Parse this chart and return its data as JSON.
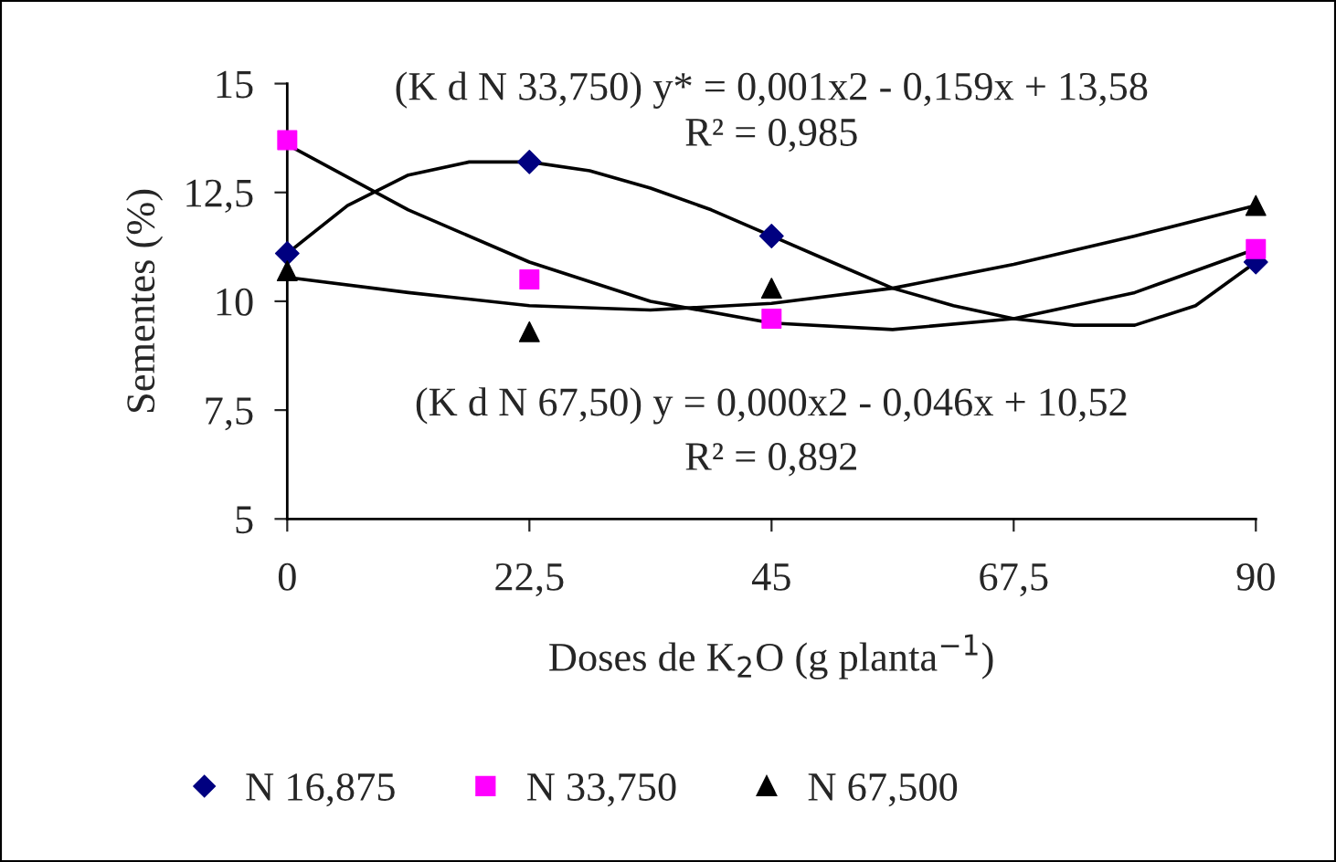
{
  "chart_data": {
    "type": "scatter",
    "xlabel": "Doses de K$_{2}$O (g planta$^{−1}$)",
    "ylabel": "Sementes (%)",
    "xlim": [
      0,
      90
    ],
    "ylim": [
      5,
      15
    ],
    "xticks": [
      0,
      {
        "value": 22.5,
        "label": "22,5"
      },
      45,
      {
        "value": 67.5,
        "label": "67,5"
      },
      90
    ],
    "yticks": [
      5,
      {
        "value": 7.5,
        "label": "7,5"
      },
      10,
      {
        "value": 12.5,
        "label": "12,5"
      },
      15
    ],
    "grid": false,
    "legend": "bottom",
    "series": [
      {
        "name": "N 16,875",
        "marker": "diamond",
        "color": "#000080",
        "x": [
          0,
          22.5,
          45,
          90
        ],
        "values": [
          11.1,
          13.2,
          11.5,
          10.9
        ]
      },
      {
        "name": "N 33,750",
        "marker": "square",
        "color": "#ff00ff",
        "x": [
          0,
          22.5,
          45,
          90
        ],
        "values": [
          13.7,
          10.5,
          9.6,
          11.2
        ]
      },
      {
        "name": "N 67,500",
        "marker": "triangle",
        "color": "#000000",
        "x": [
          0,
          22.5,
          45,
          90
        ],
        "values": [
          10.7,
          9.3,
          10.3,
          12.2
        ]
      },
      {
        "type": "line",
        "marker": "none",
        "color": "#000000",
        "x": [
          0,
          5.6,
          11.25,
          16.9,
          22.5,
          28.1,
          33.75,
          39.4,
          45,
          50.6,
          56.25,
          61.9,
          67.5,
          73.1,
          78.75,
          84.4,
          90
        ],
        "values": [
          11.1,
          12.2,
          12.9,
          13.2,
          13.2,
          13.0,
          12.6,
          12.1,
          11.5,
          10.9,
          10.3,
          9.9,
          9.6,
          9.45,
          9.45,
          9.9,
          10.9
        ]
      },
      {
        "type": "line",
        "marker": "none",
        "color": "#000000",
        "x": [
          0,
          11.25,
          22.5,
          33.75,
          45,
          56.25,
          67.5,
          78.75,
          90
        ],
        "values": [
          13.6,
          12.1,
          10.9,
          10.0,
          9.5,
          9.35,
          9.6,
          10.2,
          11.2
        ]
      },
      {
        "type": "line",
        "marker": "none",
        "color": "#000000",
        "x": [
          0,
          11.25,
          22.5,
          33.75,
          45,
          56.25,
          67.5,
          78.75,
          90
        ],
        "values": [
          10.55,
          10.2,
          9.9,
          9.8,
          9.95,
          10.3,
          10.85,
          11.5,
          12.2
        ]
      }
    ],
    "annotations": [
      "(K d N 33,750) y* = 0,001x2 - 0,159x + 13,58",
      "R² = 0,985",
      "(K d N 67,50) y = 0,000x2 - 0,046x + 10,52",
      "R² = 0,892"
    ]
  }
}
